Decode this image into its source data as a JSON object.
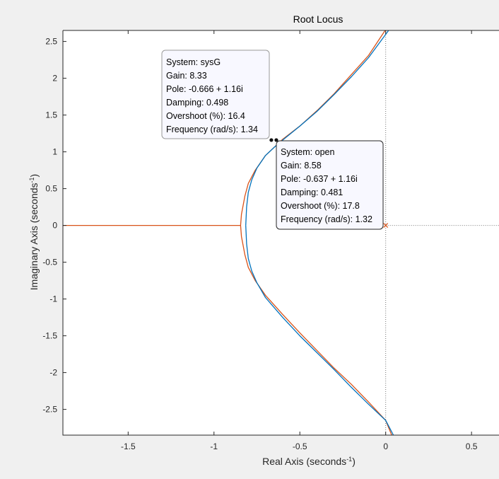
{
  "chart_data": {
    "type": "line",
    "title": "Root Locus",
    "xlabel": {
      "text": "Real Axis (seconds",
      "sup": "-1",
      "close": ")"
    },
    "ylabel": {
      "text": "Imaginary Axis (seconds",
      "sup": "-1",
      "close": ")"
    },
    "xlim": [
      -1.88,
      0.66
    ],
    "ylim": [
      -2.85,
      2.65
    ],
    "x_ticks": [
      -1.5,
      -1,
      -0.5,
      0,
      0.5
    ],
    "x_tick_labels": [
      "-1.5",
      "-1",
      "-0.5",
      "0",
      "0.5"
    ],
    "y_ticks": [
      2.5,
      2,
      1.5,
      1,
      0.5,
      0,
      -0.5,
      -1,
      -1.5,
      -2,
      -2.5
    ],
    "y_tick_labels": [
      "2.5",
      "2",
      "1.5",
      "1",
      "0.5",
      "0",
      "-0.5",
      "-1",
      "-1.5",
      "-2",
      "-2.5"
    ],
    "grid": false,
    "colors": {
      "sysG": "#d95319",
      "open": "#0072bd"
    },
    "series": [
      {
        "name": "sysG",
        "color": "#d95319",
        "branches": [
          {
            "x": [
              -0.003,
              -0.1,
              -0.2,
              -0.3,
              -0.4,
              -0.5,
              -0.6,
              -0.7,
              -0.76,
              -0.8,
              -0.82,
              -0.84,
              -0.845
            ],
            "y": [
              2.65,
              2.31,
              2.05,
              1.79,
              1.56,
              1.35,
              1.17,
              0.95,
              0.75,
              0.57,
              0.4,
              0.15,
              0.0
            ]
          },
          {
            "x": [
              -0.845,
              -0.84,
              -0.82,
              -0.8,
              -0.76,
              -0.7,
              -0.6,
              -0.5,
              -0.4,
              -0.3,
              -0.2,
              -0.1,
              0.0,
              0.035
            ],
            "y": [
              0.0,
              -0.15,
              -0.4,
              -0.57,
              -0.75,
              -0.95,
              -1.21,
              -1.46,
              -1.7,
              -1.94,
              -2.16,
              -2.4,
              -2.65,
              -2.85
            ]
          },
          {
            "x": [
              -1.88,
              -0.845
            ],
            "y": [
              0.0,
              0.0
            ]
          }
        ]
      },
      {
        "name": "open",
        "color": "#0072bd",
        "branches": [
          {
            "x": [
              0.017,
              -0.1,
              -0.2,
              -0.3,
              -0.4,
              -0.5,
              -0.6,
              -0.65,
              -0.7,
              -0.75,
              -0.78,
              -0.8,
              -0.81,
              -0.815
            ],
            "y": [
              2.65,
              2.28,
              2.02,
              1.78,
              1.55,
              1.35,
              1.16,
              1.06,
              0.95,
              0.78,
              0.62,
              0.45,
              0.25,
              0.0
            ]
          },
          {
            "x": [
              -0.815,
              -0.81,
              -0.8,
              -0.78,
              -0.75,
              -0.7,
              -0.6,
              -0.5,
              -0.4,
              -0.3,
              -0.2,
              -0.1,
              0.0,
              0.045
            ],
            "y": [
              0.0,
              -0.25,
              -0.45,
              -0.62,
              -0.78,
              -0.98,
              -1.25,
              -1.5,
              -1.73,
              -1.96,
              -2.2,
              -2.43,
              -2.65,
              -2.85
            ]
          }
        ]
      }
    ],
    "poles": [
      {
        "x": 0,
        "y": 0
      }
    ],
    "reference_lines": [
      {
        "orientation": "vertical",
        "at": 0
      },
      {
        "orientation": "horizontal",
        "at": 0,
        "from": 0
      }
    ],
    "markers": [
      {
        "x": -0.666,
        "y": 1.16
      },
      {
        "x": -0.637,
        "y": 1.16
      }
    ],
    "datatips": [
      {
        "lines": [
          "System: sysG",
          "Gain: 8.33",
          "Pole: -0.666 + 1.16i",
          "Damping: 0.498",
          "Overshoot (%): 16.4",
          "Frequency (rad/s): 1.34"
        ]
      },
      {
        "lines": [
          "System: open",
          "Gain: 8.58",
          "Pole: -0.637 + 1.16i",
          "Damping: 0.481",
          "Overshoot (%): 17.8",
          "Frequency (rad/s): 1.32"
        ]
      }
    ]
  }
}
